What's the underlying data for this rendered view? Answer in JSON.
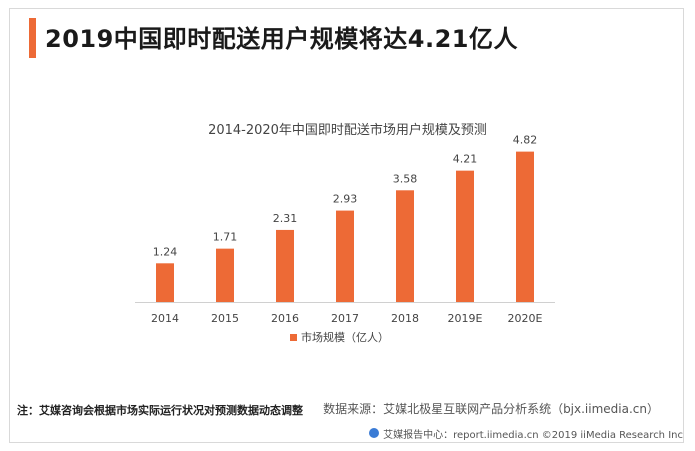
{
  "header": {
    "title": "2019中国即时配送用户规模将达4.21亿人",
    "accent_color": "#ed6a36"
  },
  "chart_data": {
    "type": "bar",
    "title": "2014-2020年中国即时配送市场用户规模及预测",
    "categories": [
      "2014",
      "2015",
      "2016",
      "2017",
      "2018",
      "2019E",
      "2020E"
    ],
    "series": [
      {
        "name": "市场规模（亿人）",
        "values": [
          1.24,
          1.71,
          2.31,
          2.93,
          3.58,
          4.21,
          4.82
        ],
        "color": "#ed6a36"
      }
    ],
    "ylim": [
      0,
      5
    ],
    "grid": false,
    "legend_position": "bottom"
  },
  "footnotes": {
    "note": "注：艾媒咨询会根据市场实际运行状况对预测数据动态调整",
    "source": "数据来源：艾媒北极星互联网产品分析系统（bjx.iimedia.cn）"
  },
  "footer": {
    "text": "艾媒报告中心：report.iimedia.cn  ©2019  iiMedia Research Inc"
  }
}
